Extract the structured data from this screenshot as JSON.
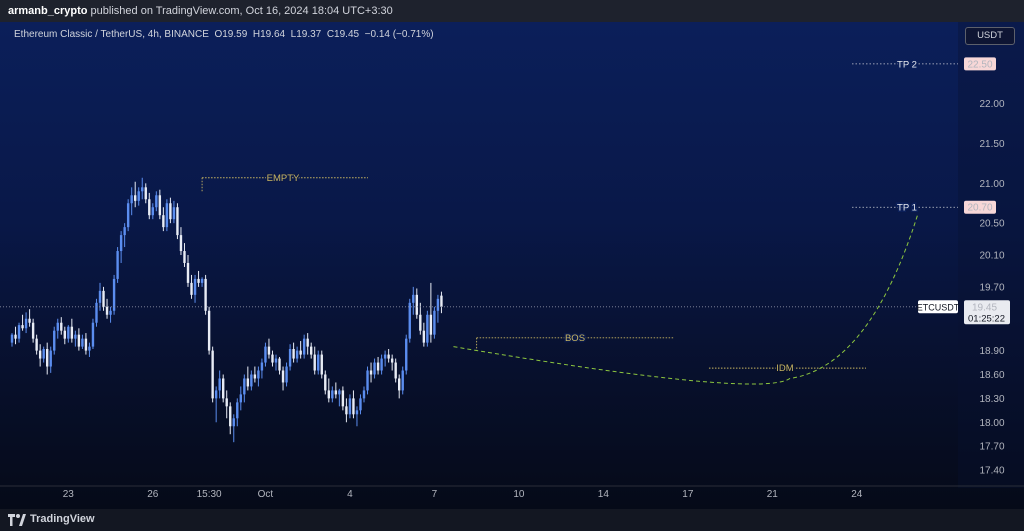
{
  "header": {
    "publisher": "armanb_crypto",
    "published_text": "published on TradingView.com, Oct 16, 2024 18:04 UTC+3:30"
  },
  "legend": {
    "symbol_name": "Ethereum Classic / TetherUS, 4h, BINANCE",
    "o_label": "O",
    "o": "19.59",
    "h_label": "H",
    "h": "19.64",
    "l_label": "L",
    "l": "19.37",
    "c_label": "C",
    "c": "19.45",
    "change": "−0.14 (−0.71%)"
  },
  "currency_button": "USDT",
  "footer": {
    "brand": "TradingView"
  },
  "colors": {
    "up": "#5b8def",
    "down": "#e8ecf5",
    "annotation": "#c9b662",
    "tp_line": "#e57373",
    "price_label_bg": "#ffffff"
  },
  "chart_data": {
    "type": "candlestick",
    "symbol": "ETCUSDT",
    "interval": "4h",
    "ylim": [
      17.2,
      22.9
    ],
    "y_ticks": [
      "22.00",
      "21.50",
      "21.00",
      "20.50",
      "20.10",
      "19.70",
      "18.90",
      "18.60",
      "18.30",
      "18.00",
      "17.70",
      "17.40"
    ],
    "y_tick_values": [
      22.0,
      21.5,
      21.0,
      20.5,
      20.1,
      19.7,
      18.9,
      18.6,
      18.3,
      18.0,
      17.7,
      17.4
    ],
    "x_ticks": [
      "23",
      "26",
      "15:30",
      "Oct",
      "4",
      "7",
      "10",
      "14",
      "17",
      "21",
      "24"
    ],
    "x_tick_index": [
      16,
      40,
      56,
      72,
      96,
      120,
      144,
      168,
      192,
      216,
      240
    ],
    "current_price": {
      "symbol": "ETCUSDT",
      "price": "19.45",
      "countdown": "01:25:22"
    },
    "levels": [
      {
        "name": "TP 2",
        "label": "TP 2",
        "price_label": "22.50",
        "value": 22.5
      },
      {
        "name": "TP 1",
        "label": "TP 1",
        "price_label": "20.70",
        "value": 20.7
      },
      {
        "name": "EMPTY",
        "label": "EMPTY",
        "value": 21.07
      },
      {
        "name": "BOS",
        "label": "BOS",
        "value": 19.06
      },
      {
        "name": "IDM",
        "label": "IDM",
        "value": 18.68
      }
    ],
    "candles_ohlc": [
      [
        19.0,
        19.12,
        18.95,
        19.1
      ],
      [
        19.1,
        19.2,
        18.98,
        19.05
      ],
      [
        19.05,
        19.25,
        19.0,
        19.22
      ],
      [
        19.22,
        19.35,
        19.15,
        19.18
      ],
      [
        19.18,
        19.38,
        19.12,
        19.3
      ],
      [
        19.3,
        19.42,
        19.2,
        19.25
      ],
      [
        19.25,
        19.3,
        19.0,
        19.05
      ],
      [
        19.05,
        19.1,
        18.85,
        18.9
      ],
      [
        18.9,
        18.98,
        18.7,
        18.8
      ],
      [
        18.8,
        18.95,
        18.75,
        18.92
      ],
      [
        18.92,
        19.0,
        18.6,
        18.7
      ],
      [
        18.7,
        18.95,
        18.62,
        18.9
      ],
      [
        18.9,
        19.2,
        18.85,
        19.15
      ],
      [
        19.15,
        19.3,
        19.05,
        19.25
      ],
      [
        19.25,
        19.32,
        19.1,
        19.15
      ],
      [
        19.15,
        19.2,
        18.98,
        19.05
      ],
      [
        19.05,
        19.22,
        19.0,
        19.2
      ],
      [
        19.2,
        19.3,
        19.0,
        19.05
      ],
      [
        19.05,
        19.15,
        18.95,
        19.1
      ],
      [
        19.1,
        19.18,
        18.9,
        18.95
      ],
      [
        18.95,
        19.1,
        18.92,
        19.05
      ],
      [
        19.05,
        19.12,
        18.85,
        18.9
      ],
      [
        18.9,
        19.0,
        18.82,
        18.95
      ],
      [
        18.95,
        19.3,
        18.92,
        19.25
      ],
      [
        19.25,
        19.55,
        19.2,
        19.5
      ],
      [
        19.5,
        19.75,
        19.4,
        19.65
      ],
      [
        19.65,
        19.7,
        19.4,
        19.45
      ],
      [
        19.45,
        19.55,
        19.3,
        19.35
      ],
      [
        19.35,
        19.45,
        19.25,
        19.4
      ],
      [
        19.4,
        19.85,
        19.35,
        19.8
      ],
      [
        19.8,
        20.2,
        19.75,
        20.15
      ],
      [
        20.15,
        20.4,
        20.0,
        20.35
      ],
      [
        20.35,
        20.5,
        20.2,
        20.45
      ],
      [
        20.45,
        20.8,
        20.4,
        20.75
      ],
      [
        20.75,
        20.95,
        20.6,
        20.85
      ],
      [
        20.85,
        21.02,
        20.7,
        20.78
      ],
      [
        20.78,
        20.95,
        20.72,
        20.9
      ],
      [
        20.9,
        21.07,
        20.8,
        20.95
      ],
      [
        20.95,
        21.0,
        20.75,
        20.8
      ],
      [
        20.8,
        20.88,
        20.55,
        20.6
      ],
      [
        20.6,
        20.75,
        20.55,
        20.7
      ],
      [
        20.7,
        20.9,
        20.65,
        20.85
      ],
      [
        20.85,
        20.92,
        20.55,
        20.6
      ],
      [
        20.6,
        20.7,
        20.4,
        20.45
      ],
      [
        20.45,
        20.8,
        20.4,
        20.75
      ],
      [
        20.75,
        20.82,
        20.5,
        20.55
      ],
      [
        20.55,
        20.78,
        20.5,
        20.7
      ],
      [
        20.7,
        20.75,
        20.3,
        20.35
      ],
      [
        20.35,
        20.45,
        20.1,
        20.15
      ],
      [
        20.15,
        20.25,
        19.95,
        20.0
      ],
      [
        20.0,
        20.1,
        19.7,
        19.75
      ],
      [
        19.75,
        19.85,
        19.55,
        19.6
      ],
      [
        19.6,
        19.85,
        19.5,
        19.8
      ],
      [
        19.8,
        19.9,
        19.7,
        19.75
      ],
      [
        19.75,
        19.82,
        19.7,
        19.8
      ],
      [
        19.8,
        19.85,
        19.35,
        19.4
      ],
      [
        19.4,
        19.45,
        18.85,
        18.9
      ],
      [
        18.9,
        18.95,
        18.25,
        18.3
      ],
      [
        18.3,
        18.45,
        18.0,
        18.4
      ],
      [
        18.4,
        18.65,
        18.3,
        18.55
      ],
      [
        18.55,
        18.6,
        18.25,
        18.3
      ],
      [
        18.3,
        18.4,
        18.05,
        18.2
      ],
      [
        18.2,
        18.25,
        17.85,
        17.95
      ],
      [
        17.95,
        18.1,
        17.75,
        18.05
      ],
      [
        18.05,
        18.3,
        17.95,
        18.25
      ],
      [
        18.25,
        18.45,
        18.15,
        18.35
      ],
      [
        18.35,
        18.6,
        18.25,
        18.55
      ],
      [
        18.55,
        18.7,
        18.4,
        18.45
      ],
      [
        18.45,
        18.65,
        18.4,
        18.6
      ],
      [
        18.6,
        18.7,
        18.5,
        18.55
      ],
      [
        18.55,
        18.7,
        18.45,
        18.65
      ],
      [
        18.65,
        18.8,
        18.55,
        18.75
      ],
      [
        18.75,
        19.0,
        18.7,
        18.95
      ],
      [
        18.95,
        19.05,
        18.8,
        18.85
      ],
      [
        18.85,
        18.9,
        18.7,
        18.75
      ],
      [
        18.75,
        18.85,
        18.65,
        18.8
      ],
      [
        18.8,
        18.82,
        18.6,
        18.65
      ],
      [
        18.65,
        18.7,
        18.4,
        18.5
      ],
      [
        18.5,
        18.75,
        18.45,
        18.7
      ],
      [
        18.7,
        18.98,
        18.65,
        18.92
      ],
      [
        18.92,
        19.0,
        18.75,
        18.8
      ],
      [
        18.8,
        18.95,
        18.75,
        18.9
      ],
      [
        18.9,
        19.02,
        18.8,
        18.85
      ],
      [
        18.85,
        19.1,
        18.8,
        19.05
      ],
      [
        19.05,
        19.12,
        18.85,
        18.95
      ],
      [
        18.95,
        19.0,
        18.8,
        18.85
      ],
      [
        18.85,
        18.95,
        18.6,
        18.65
      ],
      [
        18.65,
        18.9,
        18.6,
        18.85
      ],
      [
        18.85,
        18.9,
        18.55,
        18.6
      ],
      [
        18.6,
        18.65,
        18.35,
        18.4
      ],
      [
        18.4,
        18.55,
        18.25,
        18.3
      ],
      [
        18.3,
        18.45,
        18.25,
        18.4
      ],
      [
        18.4,
        18.5,
        18.3,
        18.35
      ],
      [
        18.35,
        18.42,
        18.2,
        18.4
      ],
      [
        18.4,
        18.45,
        18.15,
        18.2
      ],
      [
        18.2,
        18.3,
        18.0,
        18.1
      ],
      [
        18.1,
        18.35,
        18.05,
        18.3
      ],
      [
        18.3,
        18.4,
        18.05,
        18.1
      ],
      [
        18.1,
        18.2,
        17.95,
        18.15
      ],
      [
        18.15,
        18.35,
        18.1,
        18.3
      ],
      [
        18.3,
        18.45,
        18.25,
        18.4
      ],
      [
        18.4,
        18.7,
        18.35,
        18.65
      ],
      [
        18.65,
        18.75,
        18.5,
        18.6
      ],
      [
        18.6,
        18.8,
        18.55,
        18.75
      ],
      [
        18.75,
        18.82,
        18.6,
        18.65
      ],
      [
        18.65,
        18.85,
        18.6,
        18.8
      ],
      [
        18.8,
        18.9,
        18.7,
        18.85
      ],
      [
        18.85,
        18.92,
        18.75,
        18.8
      ],
      [
        18.8,
        18.85,
        18.65,
        18.75
      ],
      [
        18.75,
        18.8,
        18.5,
        18.55
      ],
      [
        18.55,
        18.6,
        18.3,
        18.4
      ],
      [
        18.4,
        18.7,
        18.35,
        18.65
      ],
      [
        18.65,
        19.1,
        18.6,
        19.05
      ],
      [
        19.05,
        19.55,
        19.0,
        19.5
      ],
      [
        19.5,
        19.7,
        19.35,
        19.6
      ],
      [
        19.6,
        19.68,
        19.3,
        19.35
      ],
      [
        19.35,
        19.5,
        19.1,
        19.15
      ],
      [
        19.15,
        19.25,
        18.95,
        19.0
      ],
      [
        19.0,
        19.4,
        18.95,
        19.35
      ],
      [
        19.35,
        19.75,
        19.0,
        19.1
      ],
      [
        19.1,
        19.45,
        19.05,
        19.4
      ],
      [
        19.4,
        19.6,
        19.25,
        19.55
      ],
      [
        19.59,
        19.64,
        19.37,
        19.45
      ]
    ]
  }
}
